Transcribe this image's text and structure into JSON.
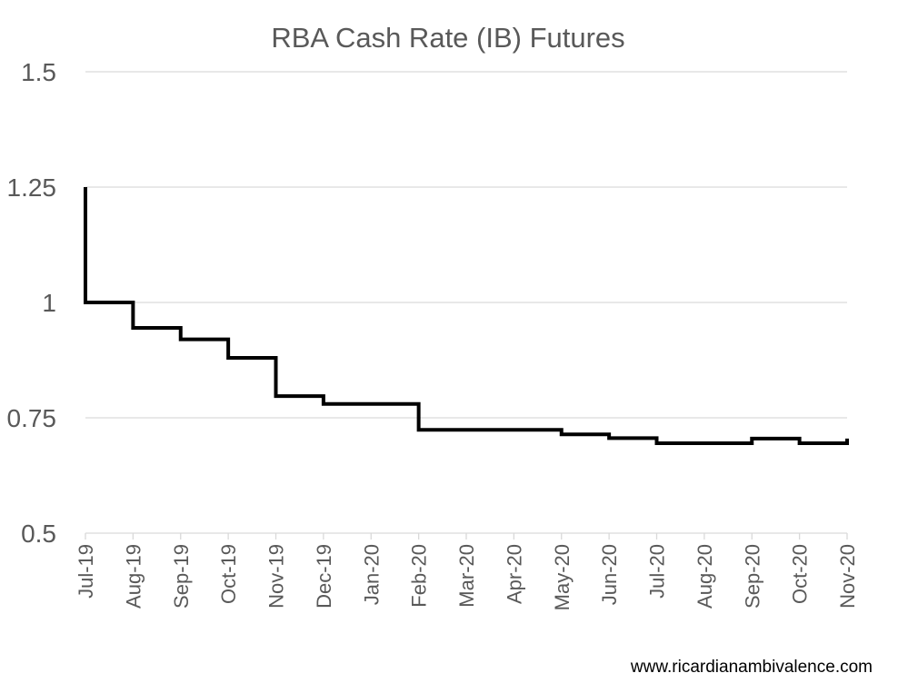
{
  "chart_data": {
    "type": "line",
    "step": true,
    "title": "RBA Cash Rate (IB) Futures",
    "xlabel": "",
    "ylabel": "",
    "ylim": [
      0.5,
      1.5
    ],
    "yticks": [
      0.5,
      0.75,
      1,
      1.25,
      1.5
    ],
    "ytick_labels": [
      "0.5",
      "0.75",
      "1",
      "1.25",
      "1.5"
    ],
    "grid": true,
    "legend": "none",
    "categories": [
      "Jul-19",
      "Aug-19",
      "Sep-19",
      "Oct-19",
      "Nov-19",
      "Dec-19",
      "Jan-20",
      "Feb-20",
      "Mar-20",
      "Apr-20",
      "May-20",
      "Jun-20",
      "Jul-20",
      "Aug-20",
      "Sep-20",
      "Oct-20",
      "Nov-20"
    ],
    "series": [
      {
        "values": [
          1.0,
          0.945,
          0.92,
          0.88,
          0.797,
          0.78,
          0.78,
          0.724,
          0.724,
          0.724,
          0.714,
          0.706,
          0.695,
          0.695,
          0.705,
          0.695,
          0.705
        ],
        "start_value": 1.25,
        "color": "#000000"
      }
    ]
  },
  "footer": {
    "credit": "www.ricardianambivalence.com"
  }
}
